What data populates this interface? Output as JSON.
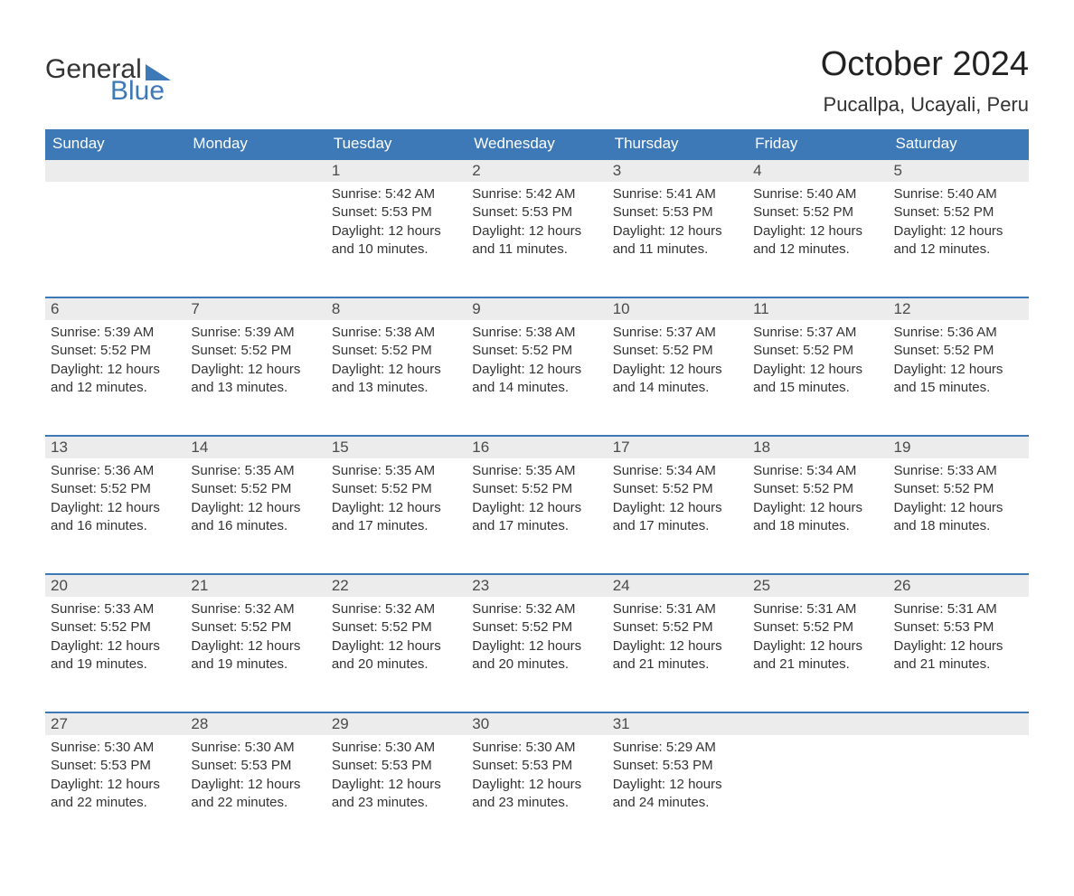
{
  "brand": {
    "word1": "General",
    "word2": "Blue",
    "accent_color": "#3d78b7"
  },
  "title": "October 2024",
  "location": "Pucallpa, Ucayali, Peru",
  "colors": {
    "header_bg": "#3d78b7",
    "header_text": "#ffffff",
    "daynum_bg": "#ececec",
    "daynum_border": "#3d78b7",
    "body_text": "#333333",
    "page_bg": "#ffffff"
  },
  "day_headers": [
    "Sunday",
    "Monday",
    "Tuesday",
    "Wednesday",
    "Thursday",
    "Friday",
    "Saturday"
  ],
  "first_weekday_index": 2,
  "days": [
    {
      "n": 1,
      "sunrise": "5:42 AM",
      "sunset": "5:53 PM",
      "daylight": "12 hours and 10 minutes."
    },
    {
      "n": 2,
      "sunrise": "5:42 AM",
      "sunset": "5:53 PM",
      "daylight": "12 hours and 11 minutes."
    },
    {
      "n": 3,
      "sunrise": "5:41 AM",
      "sunset": "5:53 PM",
      "daylight": "12 hours and 11 minutes."
    },
    {
      "n": 4,
      "sunrise": "5:40 AM",
      "sunset": "5:52 PM",
      "daylight": "12 hours and 12 minutes."
    },
    {
      "n": 5,
      "sunrise": "5:40 AM",
      "sunset": "5:52 PM",
      "daylight": "12 hours and 12 minutes."
    },
    {
      "n": 6,
      "sunrise": "5:39 AM",
      "sunset": "5:52 PM",
      "daylight": "12 hours and 12 minutes."
    },
    {
      "n": 7,
      "sunrise": "5:39 AM",
      "sunset": "5:52 PM",
      "daylight": "12 hours and 13 minutes."
    },
    {
      "n": 8,
      "sunrise": "5:38 AM",
      "sunset": "5:52 PM",
      "daylight": "12 hours and 13 minutes."
    },
    {
      "n": 9,
      "sunrise": "5:38 AM",
      "sunset": "5:52 PM",
      "daylight": "12 hours and 14 minutes."
    },
    {
      "n": 10,
      "sunrise": "5:37 AM",
      "sunset": "5:52 PM",
      "daylight": "12 hours and 14 minutes."
    },
    {
      "n": 11,
      "sunrise": "5:37 AM",
      "sunset": "5:52 PM",
      "daylight": "12 hours and 15 minutes."
    },
    {
      "n": 12,
      "sunrise": "5:36 AM",
      "sunset": "5:52 PM",
      "daylight": "12 hours and 15 minutes."
    },
    {
      "n": 13,
      "sunrise": "5:36 AM",
      "sunset": "5:52 PM",
      "daylight": "12 hours and 16 minutes."
    },
    {
      "n": 14,
      "sunrise": "5:35 AM",
      "sunset": "5:52 PM",
      "daylight": "12 hours and 16 minutes."
    },
    {
      "n": 15,
      "sunrise": "5:35 AM",
      "sunset": "5:52 PM",
      "daylight": "12 hours and 17 minutes."
    },
    {
      "n": 16,
      "sunrise": "5:35 AM",
      "sunset": "5:52 PM",
      "daylight": "12 hours and 17 minutes."
    },
    {
      "n": 17,
      "sunrise": "5:34 AM",
      "sunset": "5:52 PM",
      "daylight": "12 hours and 17 minutes."
    },
    {
      "n": 18,
      "sunrise": "5:34 AM",
      "sunset": "5:52 PM",
      "daylight": "12 hours and 18 minutes."
    },
    {
      "n": 19,
      "sunrise": "5:33 AM",
      "sunset": "5:52 PM",
      "daylight": "12 hours and 18 minutes."
    },
    {
      "n": 20,
      "sunrise": "5:33 AM",
      "sunset": "5:52 PM",
      "daylight": "12 hours and 19 minutes."
    },
    {
      "n": 21,
      "sunrise": "5:32 AM",
      "sunset": "5:52 PM",
      "daylight": "12 hours and 19 minutes."
    },
    {
      "n": 22,
      "sunrise": "5:32 AM",
      "sunset": "5:52 PM",
      "daylight": "12 hours and 20 minutes."
    },
    {
      "n": 23,
      "sunrise": "5:32 AM",
      "sunset": "5:52 PM",
      "daylight": "12 hours and 20 minutes."
    },
    {
      "n": 24,
      "sunrise": "5:31 AM",
      "sunset": "5:52 PM",
      "daylight": "12 hours and 21 minutes."
    },
    {
      "n": 25,
      "sunrise": "5:31 AM",
      "sunset": "5:52 PM",
      "daylight": "12 hours and 21 minutes."
    },
    {
      "n": 26,
      "sunrise": "5:31 AM",
      "sunset": "5:53 PM",
      "daylight": "12 hours and 21 minutes."
    },
    {
      "n": 27,
      "sunrise": "5:30 AM",
      "sunset": "5:53 PM",
      "daylight": "12 hours and 22 minutes."
    },
    {
      "n": 28,
      "sunrise": "5:30 AM",
      "sunset": "5:53 PM",
      "daylight": "12 hours and 22 minutes."
    },
    {
      "n": 29,
      "sunrise": "5:30 AM",
      "sunset": "5:53 PM",
      "daylight": "12 hours and 23 minutes."
    },
    {
      "n": 30,
      "sunrise": "5:30 AM",
      "sunset": "5:53 PM",
      "daylight": "12 hours and 23 minutes."
    },
    {
      "n": 31,
      "sunrise": "5:29 AM",
      "sunset": "5:53 PM",
      "daylight": "12 hours and 24 minutes."
    }
  ],
  "labels": {
    "sunrise": "Sunrise:",
    "sunset": "Sunset:",
    "daylight": "Daylight:"
  }
}
